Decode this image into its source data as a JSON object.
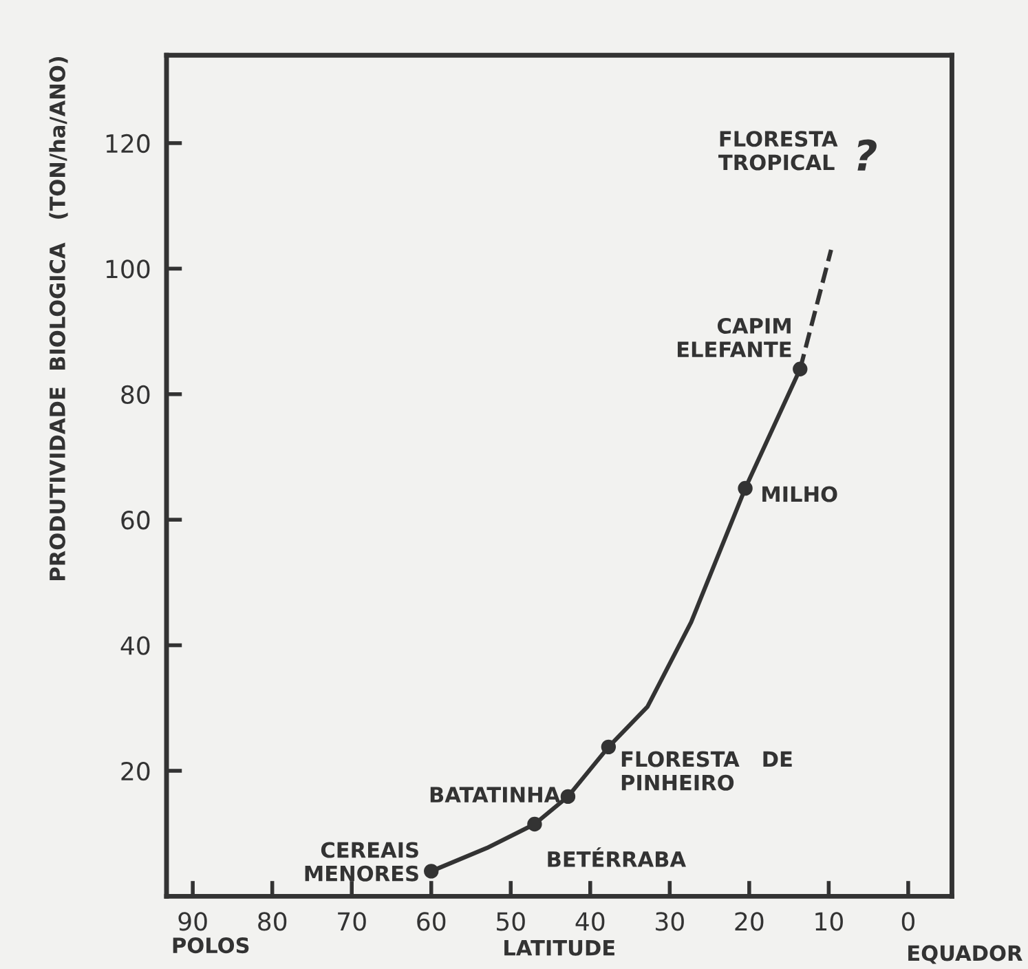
{
  "chart_data": {
    "type": "line",
    "xlabel": "LATITUDE",
    "ylabel": "PRODUTIVIDADE  BIOLOGICA   (TON/ha/ANO)",
    "xlim": [
      93.3,
      -5.5
    ],
    "ylim": [
      0,
      134
    ],
    "xticks": [
      90,
      80,
      70,
      60,
      50,
      40,
      30,
      20,
      10,
      0
    ],
    "yticks": [
      20,
      40,
      60,
      80,
      100,
      120
    ],
    "grid": false,
    "series": [
      {
        "color": "#333333",
        "line_style": "solid",
        "marker": "none",
        "x": [
          60,
          53,
          47,
          42.8,
          37.7,
          32.8,
          27.3,
          20.5,
          13.6
        ],
        "values": [
          4,
          7.7,
          11.5,
          15.9,
          23.8,
          30.2,
          43.7,
          65,
          84
        ]
      },
      {
        "color": "#333333",
        "line_style": "dashed",
        "marker": "none",
        "x": [
          13.6,
          9.7
        ],
        "values": [
          84,
          103
        ]
      },
      {
        "type": "scatter",
        "color": "#333333",
        "marker": "circle",
        "x": [
          60,
          47,
          42.8,
          37.7,
          20.5,
          13.6
        ],
        "values": [
          4,
          11.5,
          15.9,
          23.8,
          65,
          84
        ]
      }
    ],
    "annotations": [
      {
        "text": "CEREAIS\nMENORES",
        "x": 60,
        "y": 4
      },
      {
        "text": "BETÉRRABA",
        "x": 47,
        "y": 11.5
      },
      {
        "text": "BATATINHA",
        "x": 42.8,
        "y": 15.9
      },
      {
        "text": "FLORESTA   DE\nPINHEIRO",
        "x": 37.7,
        "y": 23.8
      },
      {
        "text": "MILHO",
        "x": 20.5,
        "y": 65
      },
      {
        "text": "CAPIM\nELEFANTE",
        "x": 13.6,
        "y": 84
      },
      "FLORESTA\nTROPICAL",
      "?",
      "POLOS",
      "EQUADOR"
    ]
  }
}
